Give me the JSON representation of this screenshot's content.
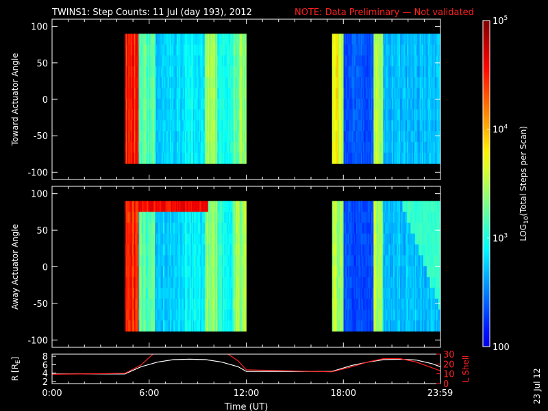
{
  "title": {
    "main": "TWINS1: Step Counts: 11 Jul (day 193), 2012",
    "note": "NOTE: Data Preliminary — Not validated"
  },
  "colors": {
    "background": "#000000",
    "axis": "#ffffff",
    "note": "#ff2020",
    "lshell": "#ff2020",
    "r": "#ffffff"
  },
  "colorbar": {
    "label": "LOG",
    "label_sub": "10",
    "label_rest": "(Total Steps per Scan)",
    "ticks": [
      {
        "value": 100,
        "text": "100"
      },
      {
        "value": 1000,
        "text": "10",
        "sup": "3"
      },
      {
        "value": 10000,
        "text": "10",
        "sup": "4"
      },
      {
        "value": 100000,
        "text": "10",
        "sup": "5"
      }
    ],
    "range": [
      100,
      100000
    ],
    "scale": "log"
  },
  "stamp": "23 Jul 12",
  "chart_data": [
    {
      "type": "heatmap",
      "ylabel": "Toward Actuator Angle",
      "ylim": [
        -110,
        110
      ],
      "yticks": [
        -100,
        -50,
        0,
        50,
        100
      ],
      "xlim_hours": [
        0,
        24
      ],
      "data_intervals_hours": [
        [
          4.5,
          12.0
        ],
        [
          17.3,
          24.0
        ]
      ],
      "value_scale": "log counts 100–100000"
    },
    {
      "type": "heatmap",
      "ylabel": "Away Actuator Angle",
      "ylim": [
        -110,
        110
      ],
      "yticks": [
        -100,
        -50,
        0,
        50,
        100
      ],
      "xlim_hours": [
        0,
        24
      ],
      "data_intervals_hours": [
        [
          4.5,
          12.0
        ],
        [
          17.3,
          24.0
        ]
      ],
      "value_scale": "log counts 100–100000"
    },
    {
      "type": "line",
      "xlabel": "Time (UT)",
      "ylabel_left": "R [R",
      "ylabel_left_sub": "E",
      "ylabel_left_end": "]",
      "ylabel_right": "L Shell",
      "yticks_left": [
        2,
        4,
        6,
        8
      ],
      "yticks_right": [
        0,
        10,
        20,
        30
      ],
      "ylim_left": [
        1.5,
        8.5
      ],
      "ylim_right": [
        0,
        30
      ],
      "xticks": [
        {
          "value": 0,
          "text": "0:00"
        },
        {
          "value": 6,
          "text": "6:00"
        },
        {
          "value": 12,
          "text": "12:00"
        },
        {
          "value": 18,
          "text": "18:00"
        },
        {
          "value": 23.98,
          "text": "23:59"
        }
      ],
      "series": [
        {
          "name": "R",
          "x": [
            0,
            4.5,
            5.5,
            6.5,
            7.5,
            8.5,
            9.5,
            10.5,
            11.5,
            12,
            17.3,
            18.5,
            19.5,
            20.5,
            21.5,
            22.5,
            23.5,
            24
          ],
          "y": [
            3.8,
            3.8,
            5.5,
            6.6,
            7.2,
            7.3,
            7.2,
            6.6,
            5.5,
            4.4,
            4.4,
            5.8,
            6.6,
            7.2,
            7.3,
            7.1,
            6.2,
            5.5
          ]
        },
        {
          "name": "L Shell",
          "x": [
            0,
            4.5,
            5.5,
            6.3,
            10.8,
            11.5,
            12,
            17.3,
            18.5,
            19.5,
            20.5,
            21.5,
            22.5,
            23.5,
            24
          ],
          "y": [
            9.5,
            10.5,
            19,
            31,
            31,
            23,
            14,
            12,
            17,
            22,
            25.5,
            25.5,
            22,
            16,
            13
          ]
        }
      ]
    }
  ]
}
